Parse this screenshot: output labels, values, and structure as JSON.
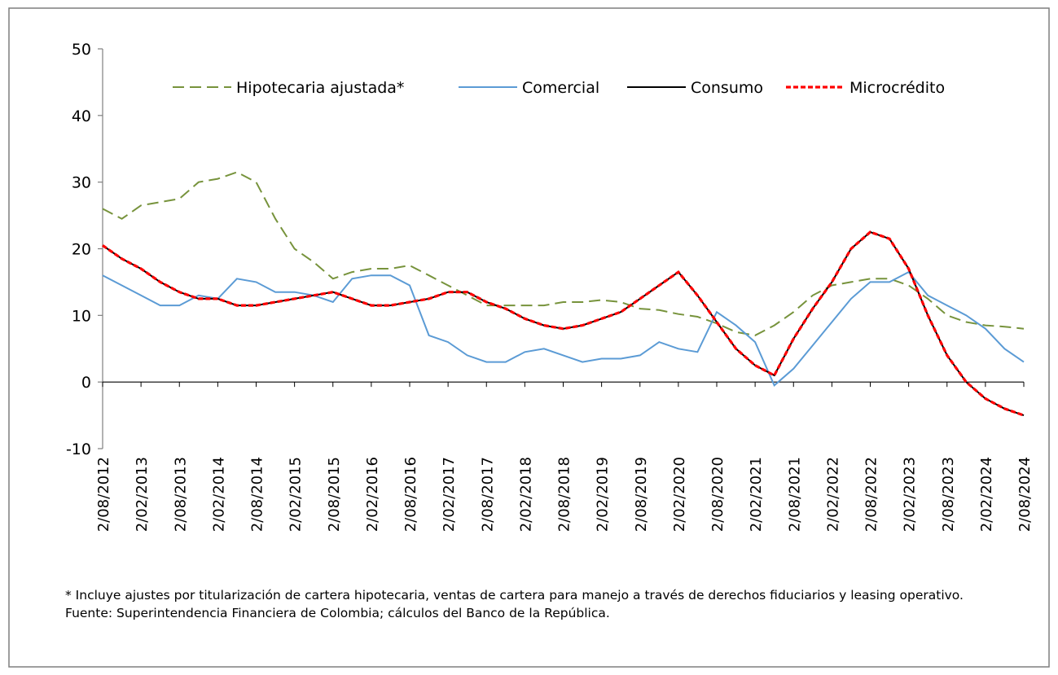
{
  "chart_data": {
    "type": "line",
    "x": [
      "2/08/2012",
      "2/11/2012",
      "2/02/2013",
      "2/05/2013",
      "2/08/2013",
      "2/11/2013",
      "2/02/2014",
      "2/05/2014",
      "2/08/2014",
      "2/11/2014",
      "2/02/2015",
      "2/05/2015",
      "2/08/2015",
      "2/11/2015",
      "2/02/2016",
      "2/05/2016",
      "2/08/2016",
      "2/11/2016",
      "2/02/2017",
      "2/05/2017",
      "2/08/2017",
      "2/11/2017",
      "2/02/2018",
      "2/05/2018",
      "2/08/2018",
      "2/11/2018",
      "2/02/2019",
      "2/05/2019",
      "2/08/2019",
      "2/11/2019",
      "2/02/2020",
      "2/05/2020",
      "2/08/2020",
      "2/11/2020",
      "2/02/2021",
      "2/05/2021",
      "2/08/2021",
      "2/11/2021",
      "2/02/2022",
      "2/05/2022",
      "2/08/2022",
      "2/11/2022",
      "2/02/2023",
      "2/05/2023",
      "2/08/2023",
      "2/11/2023",
      "2/02/2024",
      "2/05/2024",
      "2/08/2024"
    ],
    "xticks": [
      "2/08/2012",
      "2/02/2013",
      "2/08/2013",
      "2/02/2014",
      "2/08/2014",
      "2/02/2015",
      "2/08/2015",
      "2/02/2016",
      "2/08/2016",
      "2/02/2017",
      "2/08/2017",
      "2/02/2018",
      "2/08/2018",
      "2/02/2019",
      "2/08/2019",
      "2/02/2020",
      "2/08/2020",
      "2/02/2021",
      "2/08/2021",
      "2/02/2022",
      "2/08/2022",
      "2/02/2023",
      "2/08/2023",
      "2/02/2024",
      "2/08/2024"
    ],
    "ylim": [
      -10,
      50
    ],
    "yticks": [
      -10,
      0,
      10,
      20,
      30,
      40,
      50
    ],
    "series": [
      {
        "name": "Hipotecaria ajustada*",
        "color": "#77933c",
        "style": "long-dash",
        "values": [
          26,
          24.5,
          26.5,
          27,
          27.5,
          30,
          30.5,
          31.5,
          30,
          24.5,
          20,
          18,
          15.5,
          16.5,
          17,
          17,
          17.5,
          16,
          14.5,
          13,
          11.5,
          11.5,
          11.5,
          11.5,
          12,
          12,
          12.3,
          12,
          11,
          10.8,
          10.2,
          9.8,
          8.8,
          7.5,
          7,
          8.5,
          10.5,
          13,
          14.5,
          15,
          15.5,
          15.5,
          14.5,
          12.5,
          10,
          9,
          8.5,
          8.3,
          8
        ]
      },
      {
        "name": "Comercial",
        "color": "#5b9bd5",
        "style": "solid",
        "values": [
          16,
          14.5,
          13,
          11.5,
          11.5,
          13,
          12.5,
          15.5,
          15,
          13.5,
          13.5,
          13,
          12,
          15.5,
          16,
          16,
          14.5,
          7,
          6,
          4,
          3,
          3,
          4.5,
          5,
          4,
          3,
          3.5,
          3.5,
          4,
          6,
          5,
          4.5,
          10.5,
          8.5,
          6,
          -0.5,
          2,
          5.5,
          9,
          12.5,
          15,
          15,
          16.5,
          13,
          11.5,
          10,
          8,
          5,
          3
        ]
      },
      {
        "name": "Consumo",
        "color": "#000000",
        "style": "solid",
        "values": [
          20.5,
          18.5,
          17,
          15,
          13.5,
          12.5,
          12.5,
          11.5,
          11.5,
          12,
          12.5,
          13,
          13.5,
          12.5,
          11.5,
          11.5,
          12,
          12.5,
          13.5,
          13.5,
          12,
          11,
          9.5,
          8.5,
          8,
          8.5,
          9.5,
          10.5,
          12.5,
          14.5,
          16.5,
          13,
          9,
          5,
          2.5,
          1,
          6.5,
          11,
          15,
          20,
          22.5,
          21.5,
          17,
          10,
          4,
          0,
          -2.5,
          -4,
          -5
        ]
      },
      {
        "name": "Microcrédito",
        "color": "#ff0000",
        "style": "short-dash",
        "values": [
          20.5,
          18.5,
          17,
          15,
          13.5,
          12.5,
          12.5,
          11.5,
          11.5,
          12,
          12.5,
          13,
          13.5,
          12.5,
          11.5,
          11.5,
          12,
          12.5,
          13.5,
          13.5,
          12,
          11,
          9.5,
          8.5,
          8,
          8.5,
          9.5,
          10.5,
          12.5,
          14.5,
          16.5,
          13,
          9,
          5,
          2.5,
          1,
          6.5,
          11,
          15,
          20,
          22.5,
          21.5,
          17,
          10,
          4,
          0,
          -2.5,
          -4,
          -5
        ]
      }
    ],
    "notes": [
      "* Incluye ajustes por titularización de cartera hipotecaria, ventas de cartera para manejo a través de derechos fiduciarios y leasing operativo.",
      "Fuente: Superintendencia Financiera de Colombia; cálculos del Banco de la República."
    ]
  }
}
